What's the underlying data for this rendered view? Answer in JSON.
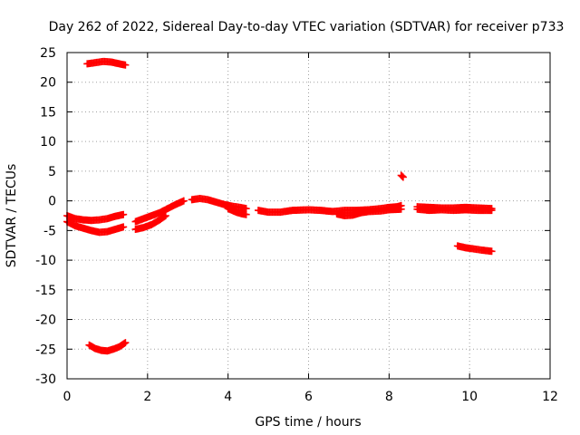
{
  "chart_data": {
    "type": "scatter",
    "title": "Day 262 of 2022, Sidereal Day-to-day VTEC variation (SDTVAR) for receiver p733",
    "xlabel": "GPS time / hours",
    "ylabel": "SDTVAR / TECUs",
    "xlim": [
      0,
      12
    ],
    "ylim": [
      -30,
      25
    ],
    "xticks": [
      0,
      2,
      4,
      6,
      8,
      10,
      12
    ],
    "yticks": [
      25,
      20,
      15,
      10,
      5,
      0,
      -5,
      -10,
      -15,
      -20,
      -25,
      -30
    ],
    "grid": true,
    "legend": "none",
    "marker": "plus",
    "color": "#ff0000",
    "tracks": [
      [
        [
          0.5,
          23.1
        ],
        [
          0.7,
          23.3
        ],
        [
          0.9,
          23.5
        ],
        [
          1.1,
          23.4
        ],
        [
          1.3,
          23.1
        ],
        [
          1.45,
          22.9
        ]
      ],
      [
        [
          0.0,
          -2.5
        ],
        [
          0.2,
          -3.0
        ],
        [
          0.4,
          -3.2
        ],
        [
          0.6,
          -3.3
        ],
        [
          0.8,
          -3.2
        ],
        [
          1.0,
          -3.0
        ],
        [
          1.2,
          -2.6
        ],
        [
          1.4,
          -2.3
        ]
      ],
      [
        [
          0.0,
          -3.5
        ],
        [
          0.2,
          -4.2
        ],
        [
          0.4,
          -4.6
        ],
        [
          0.6,
          -5.0
        ],
        [
          0.8,
          -5.3
        ],
        [
          1.0,
          -5.2
        ],
        [
          1.2,
          -4.8
        ],
        [
          1.4,
          -4.4
        ]
      ],
      [
        [
          0.55,
          -24.3
        ],
        [
          0.7,
          -24.9
        ],
        [
          0.85,
          -25.2
        ],
        [
          1.0,
          -25.3
        ],
        [
          1.15,
          -25.0
        ],
        [
          1.3,
          -24.6
        ],
        [
          1.45,
          -23.9
        ]
      ],
      [
        [
          1.7,
          -3.5
        ],
        [
          1.9,
          -3.0
        ],
        [
          2.1,
          -2.5
        ],
        [
          2.3,
          -2.0
        ],
        [
          2.5,
          -1.3
        ],
        [
          2.7,
          -0.6
        ],
        [
          2.9,
          0.0
        ]
      ],
      [
        [
          1.7,
          -4.8
        ],
        [
          1.9,
          -4.5
        ],
        [
          2.1,
          -4.0
        ],
        [
          2.3,
          -3.2
        ],
        [
          2.45,
          -2.5
        ]
      ],
      [
        [
          3.1,
          0.2
        ],
        [
          3.3,
          0.4
        ],
        [
          3.5,
          0.2
        ],
        [
          3.7,
          -0.2
        ],
        [
          3.9,
          -0.6
        ],
        [
          4.1,
          -0.9
        ],
        [
          4.3,
          -1.1
        ],
        [
          4.45,
          -1.3
        ]
      ],
      [
        [
          4.0,
          -1.3
        ],
        [
          4.2,
          -1.9
        ],
        [
          4.35,
          -2.2
        ],
        [
          4.45,
          -2.3
        ]
      ],
      [
        [
          4.75,
          -1.6
        ],
        [
          5.0,
          -1.9
        ],
        [
          5.3,
          -1.9
        ],
        [
          5.6,
          -1.6
        ],
        [
          6.0,
          -1.5
        ],
        [
          6.3,
          -1.6
        ],
        [
          6.6,
          -1.8
        ],
        [
          6.9,
          -1.6
        ],
        [
          7.2,
          -1.6
        ],
        [
          7.5,
          -1.5
        ],
        [
          7.8,
          -1.3
        ],
        [
          8.0,
          -1.1
        ],
        [
          8.2,
          -1.0
        ],
        [
          8.3,
          -0.8
        ]
      ],
      [
        [
          6.7,
          -2.2
        ],
        [
          6.9,
          -2.5
        ],
        [
          7.1,
          -2.4
        ],
        [
          7.3,
          -2.0
        ],
        [
          7.5,
          -1.8
        ],
        [
          7.8,
          -1.7
        ],
        [
          8.0,
          -1.5
        ],
        [
          8.3,
          -1.4
        ]
      ],
      [
        [
          8.3,
          4.3
        ],
        [
          8.35,
          4.0
        ]
      ],
      [
        [
          8.7,
          -1.0
        ],
        [
          9.0,
          -1.1
        ],
        [
          9.3,
          -1.2
        ],
        [
          9.6,
          -1.2
        ],
        [
          9.9,
          -1.1
        ],
        [
          10.2,
          -1.2
        ],
        [
          10.55,
          -1.3
        ]
      ],
      [
        [
          8.7,
          -1.4
        ],
        [
          9.0,
          -1.6
        ],
        [
          9.3,
          -1.5
        ],
        [
          9.6,
          -1.6
        ],
        [
          9.9,
          -1.5
        ],
        [
          10.2,
          -1.6
        ],
        [
          10.55,
          -1.6
        ]
      ],
      [
        [
          9.7,
          -7.6
        ],
        [
          9.9,
          -7.9
        ],
        [
          10.1,
          -8.1
        ],
        [
          10.3,
          -8.3
        ],
        [
          10.55,
          -8.5
        ]
      ]
    ]
  }
}
